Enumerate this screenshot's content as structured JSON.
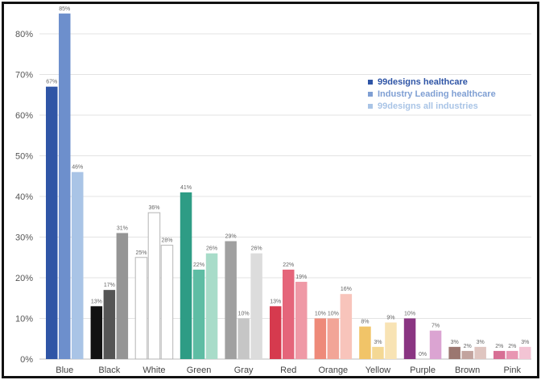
{
  "chart_data": {
    "type": "bar",
    "categories": [
      "Blue",
      "Black",
      "White",
      "Green",
      "Gray",
      "Red",
      "Orange",
      "Yellow",
      "Purple",
      "Brown",
      "Pink"
    ],
    "series": [
      {
        "name": "99designs healthcare",
        "values": [
          67,
          13,
          25,
          41,
          29,
          13,
          10,
          8,
          10,
          3,
          2
        ]
      },
      {
        "name": "Industry Leading healthcare",
        "values": [
          85,
          17,
          36,
          22,
          10,
          22,
          10,
          3,
          0,
          2,
          2
        ]
      },
      {
        "name": "99designs all industries",
        "values": [
          46,
          31,
          28,
          26,
          26,
          19,
          16,
          9,
          7,
          3,
          3
        ]
      }
    ],
    "value_labels": [
      [
        "67%",
        "13%",
        "25%",
        "41%",
        "29%",
        "13%",
        "10%",
        "8%",
        "10%",
        "3%",
        "2%"
      ],
      [
        "85%",
        "17%",
        "36%",
        "22%",
        "10%",
        "22%",
        "10%",
        "3%",
        "0%",
        "2%",
        "2%"
      ],
      [
        "46%",
        "31%",
        "28%",
        "26%",
        "26%",
        "19%",
        "16%",
        "9%",
        "7%",
        "3%",
        "3%"
      ]
    ],
    "y_ticks": [
      "0%",
      "10%",
      "20%",
      "30%",
      "40%",
      "50%",
      "60%",
      "70%",
      "80%"
    ],
    "ylim": [
      0,
      85
    ],
    "grid": true,
    "legend_position": "top-right",
    "legend_colors": [
      "#2f55a6",
      "#7f9fd3",
      "#a9c4e6"
    ],
    "bar_colors": [
      [
        "#2f55a6",
        "#6d8fcc",
        "#a9c4e6"
      ],
      [
        "#111111",
        "#555555",
        "#959595"
      ],
      [
        "#ffffff",
        "#ffffff",
        "#ffffff"
      ],
      [
        "#2e9c85",
        "#5ebda4",
        "#a8dcc9"
      ],
      [
        "#a0a0a0",
        "#c6c6c6",
        "#dcdcdc"
      ],
      [
        "#d63a4e",
        "#e5657a",
        "#ef99a6"
      ],
      [
        "#ee8a79",
        "#f2a597",
        "#f8c4bb"
      ],
      [
        "#f1c468",
        "#f4d894",
        "#f8e3b4"
      ],
      [
        "#8a3582",
        "#c07ab6",
        "#dba4d2"
      ],
      [
        "#9b7770",
        "#c2a39e",
        "#dfc5c0"
      ],
      [
        "#d76f94",
        "#e896b2",
        "#f3c4d4"
      ]
    ]
  }
}
